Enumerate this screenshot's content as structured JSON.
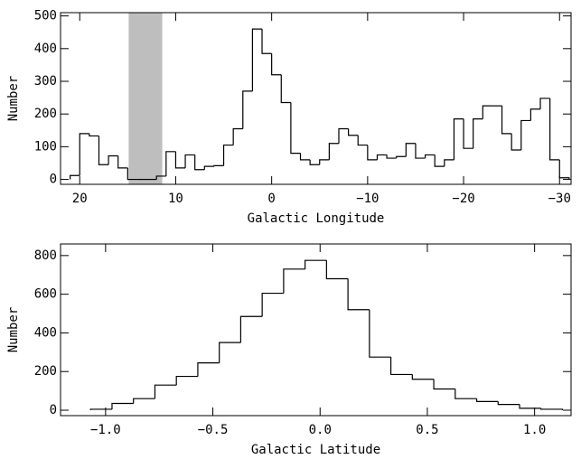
{
  "chart_data": [
    {
      "type": "histogram",
      "xlabel": "Galactic Longitude",
      "ylabel": "Number",
      "color": "#000000",
      "bins": [
        21,
        20,
        19,
        18,
        17,
        16,
        15,
        14,
        13,
        12,
        11,
        10,
        9,
        8,
        7,
        6,
        5,
        4,
        3,
        2,
        1,
        0,
        -1,
        -2,
        -3,
        -4,
        -5,
        -6,
        -7,
        -8,
        -9,
        -10,
        -11,
        -12,
        -13,
        -14,
        -15,
        -16,
        -17,
        -18,
        -19,
        -20,
        -21,
        -22,
        -23,
        -24,
        -25,
        -26,
        -27,
        -28,
        -29,
        -30,
        -31
      ],
      "values": [
        12,
        140,
        133,
        45,
        72,
        35,
        0,
        0,
        0,
        10,
        85,
        35,
        75,
        30,
        40,
        42,
        105,
        155,
        270,
        460,
        385,
        320,
        235,
        80,
        60,
        45,
        60,
        110,
        155,
        135,
        105,
        60,
        75,
        65,
        70,
        110,
        65,
        75,
        40,
        60,
        185,
        95,
        185,
        225,
        225,
        140,
        90,
        180,
        215,
        248,
        60,
        5
      ],
      "xlim": [
        22,
        -31.2
      ],
      "ylim": [
        -15,
        510
      ],
      "xticks": [
        20,
        10,
        0,
        {
          "value": -10,
          "label": "−10"
        },
        {
          "value": -20,
          "label": "−20"
        },
        {
          "value": -30,
          "label": "−30"
        }
      ],
      "yticks": [
        0,
        100,
        200,
        300,
        400,
        500
      ],
      "shaded_xrange": [
        14.9,
        11.4
      ],
      "shade_color": "#bebebe"
    },
    {
      "type": "histogram",
      "xlabel": "Galactic Latitude",
      "ylabel": "Number",
      "color": "#000000",
      "bins": [
        -1.07,
        -0.97,
        -0.87,
        -0.77,
        -0.67,
        -0.57,
        -0.47,
        -0.37,
        -0.27,
        -0.17,
        -0.07,
        0.03,
        0.13,
        0.23,
        0.33,
        0.43,
        0.53,
        0.63,
        0.73,
        0.83,
        0.93,
        1.03,
        1.13
      ],
      "values": [
        5,
        35,
        60,
        130,
        175,
        245,
        350,
        485,
        605,
        730,
        775,
        680,
        520,
        275,
        185,
        160,
        110,
        60,
        45,
        30,
        10,
        5
      ],
      "xlim": [
        -1.21,
        1.17
      ],
      "ylim": [
        -28,
        860
      ],
      "xticks": [
        {
          "value": -1,
          "label": "−1.0"
        },
        {
          "value": -0.5,
          "label": "−0.5"
        },
        {
          "value": 0,
          "label": "0.0"
        },
        {
          "value": 0.5,
          "label": "0.5"
        },
        {
          "value": 1,
          "label": "1.0"
        }
      ],
      "yticks": [
        0,
        200,
        400,
        600,
        800
      ]
    }
  ]
}
